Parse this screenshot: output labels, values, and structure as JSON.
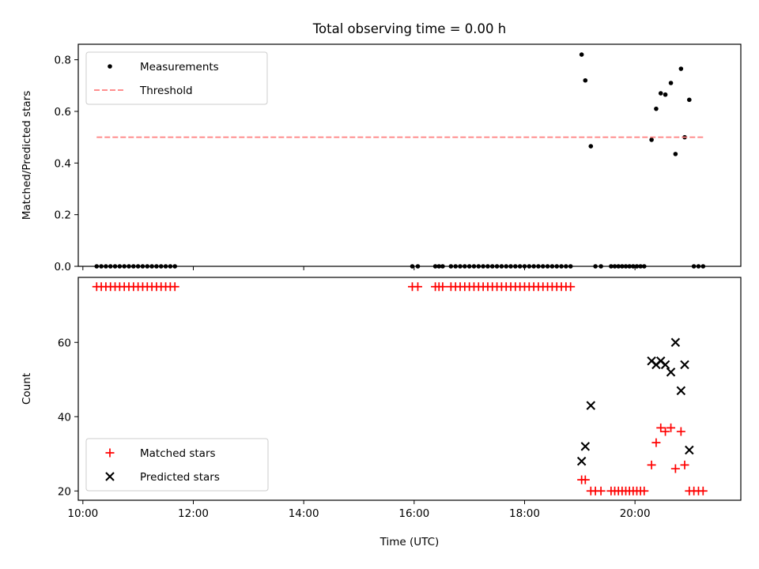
{
  "figure": {
    "title": "Total observing time = 0.00 h"
  },
  "chart_data": [
    {
      "type": "scatter",
      "panel": "top",
      "ylabel": "Matched/Predicted stars",
      "xlabel": "",
      "xlim": [
        "09:55",
        "21:55"
      ],
      "ylim": [
        0,
        0.86
      ],
      "yticks": [
        0.0,
        0.2,
        0.4,
        0.6,
        0.8
      ],
      "ytick_labels": [
        "0.0",
        "0.2",
        "0.4",
        "0.6",
        "0.8"
      ],
      "xticks": [
        "10:00",
        "12:00",
        "14:00",
        "16:00",
        "18:00",
        "20:00"
      ],
      "grid": false,
      "legend": {
        "placement": "top-left",
        "entries": [
          "Measurements",
          "Threshold"
        ]
      },
      "series": [
        {
          "name": "Measurements",
          "style": "dot",
          "color": "#000000",
          "points": [
            [
              "10:15",
              0
            ],
            [
              "10:20",
              0
            ],
            [
              "10:25",
              0
            ],
            [
              "10:30",
              0
            ],
            [
              "10:35",
              0
            ],
            [
              "10:40",
              0
            ],
            [
              "10:45",
              0
            ],
            [
              "10:50",
              0
            ],
            [
              "10:55",
              0
            ],
            [
              "11:00",
              0
            ],
            [
              "11:05",
              0
            ],
            [
              "11:10",
              0
            ],
            [
              "11:15",
              0
            ],
            [
              "11:20",
              0
            ],
            [
              "11:25",
              0
            ],
            [
              "11:30",
              0
            ],
            [
              "11:35",
              0
            ],
            [
              "11:40",
              0
            ],
            [
              "15:58",
              0
            ],
            [
              "16:04",
              0
            ],
            [
              "16:23",
              0
            ],
            [
              "16:27",
              0
            ],
            [
              "16:31",
              0
            ],
            [
              "16:40",
              0
            ],
            [
              "16:45",
              0
            ],
            [
              "16:50",
              0
            ],
            [
              "16:55",
              0
            ],
            [
              "17:00",
              0
            ],
            [
              "17:05",
              0
            ],
            [
              "17:10",
              0
            ],
            [
              "17:15",
              0
            ],
            [
              "17:20",
              0
            ],
            [
              "17:25",
              0
            ],
            [
              "17:30",
              0
            ],
            [
              "17:35",
              0
            ],
            [
              "17:40",
              0
            ],
            [
              "17:45",
              0
            ],
            [
              "17:50",
              0
            ],
            [
              "17:55",
              0
            ],
            [
              "18:00",
              0
            ],
            [
              "18:05",
              0
            ],
            [
              "18:10",
              0
            ],
            [
              "18:15",
              0
            ],
            [
              "18:20",
              0
            ],
            [
              "18:25",
              0
            ],
            [
              "18:30",
              0
            ],
            [
              "18:35",
              0
            ],
            [
              "18:40",
              0
            ],
            [
              "18:45",
              0
            ],
            [
              "18:50",
              0
            ],
            [
              "19:02",
              0.82
            ],
            [
              "19:06",
              0.72
            ],
            [
              "19:12",
              0.465
            ],
            [
              "19:17",
              0
            ],
            [
              "19:23",
              0
            ],
            [
              "19:34",
              0
            ],
            [
              "19:38",
              0
            ],
            [
              "19:42",
              0
            ],
            [
              "19:46",
              0
            ],
            [
              "19:50",
              0
            ],
            [
              "19:54",
              0
            ],
            [
              "19:58",
              0
            ],
            [
              "20:02",
              0
            ],
            [
              "20:06",
              0
            ],
            [
              "20:10",
              0
            ],
            [
              "20:18",
              0.49
            ],
            [
              "20:23",
              0.61
            ],
            [
              "20:28",
              0.67
            ],
            [
              "20:33",
              0.665
            ],
            [
              "20:39",
              0.71
            ],
            [
              "20:44",
              0.435
            ],
            [
              "20:50",
              0.765
            ],
            [
              "20:54",
              0.5
            ],
            [
              "20:59",
              0.645
            ],
            [
              "21:04",
              0
            ],
            [
              "21:09",
              0
            ],
            [
              "21:14",
              0
            ]
          ]
        },
        {
          "name": "Threshold",
          "style": "dashed-line",
          "color": "#ff7f7f",
          "x": [
            "10:15",
            "21:15"
          ],
          "y": [
            0.5,
            0.5
          ]
        }
      ]
    },
    {
      "type": "scatter",
      "panel": "bottom",
      "ylabel": "Count",
      "xlabel": "Time (UTC)",
      "xlim": [
        "09:55",
        "21:55"
      ],
      "ylim": [
        17.5,
        77.5
      ],
      "yticks": [
        20,
        40,
        60
      ],
      "ytick_labels": [
        "20",
        "40",
        "60"
      ],
      "xticks": [
        "10:00",
        "12:00",
        "14:00",
        "16:00",
        "18:00",
        "20:00"
      ],
      "xtick_labels": [
        "10:00",
        "12:00",
        "14:00",
        "16:00",
        "18:00",
        "20:00"
      ],
      "grid": false,
      "legend": {
        "placement": "bottom-left",
        "entries": [
          "Matched stars",
          "Predicted stars"
        ]
      },
      "series": [
        {
          "name": "Matched stars",
          "marker": "plus",
          "color": "#ff0000",
          "points": [
            [
              "10:15",
              75
            ],
            [
              "10:20",
              75
            ],
            [
              "10:25",
              75
            ],
            [
              "10:30",
              75
            ],
            [
              "10:35",
              75
            ],
            [
              "10:40",
              75
            ],
            [
              "10:45",
              75
            ],
            [
              "10:50",
              75
            ],
            [
              "10:55",
              75
            ],
            [
              "11:00",
              75
            ],
            [
              "11:05",
              75
            ],
            [
              "11:10",
              75
            ],
            [
              "11:15",
              75
            ],
            [
              "11:20",
              75
            ],
            [
              "11:25",
              75
            ],
            [
              "11:30",
              75
            ],
            [
              "11:35",
              75
            ],
            [
              "11:40",
              75
            ],
            [
              "15:58",
              75
            ],
            [
              "16:04",
              75
            ],
            [
              "16:23",
              75
            ],
            [
              "16:27",
              75
            ],
            [
              "16:31",
              75
            ],
            [
              "16:40",
              75
            ],
            [
              "16:45",
              75
            ],
            [
              "16:50",
              75
            ],
            [
              "16:55",
              75
            ],
            [
              "17:00",
              75
            ],
            [
              "17:05",
              75
            ],
            [
              "17:10",
              75
            ],
            [
              "17:15",
              75
            ],
            [
              "17:20",
              75
            ],
            [
              "17:25",
              75
            ],
            [
              "17:30",
              75
            ],
            [
              "17:35",
              75
            ],
            [
              "17:40",
              75
            ],
            [
              "17:45",
              75
            ],
            [
              "17:50",
              75
            ],
            [
              "17:55",
              75
            ],
            [
              "18:00",
              75
            ],
            [
              "18:05",
              75
            ],
            [
              "18:10",
              75
            ],
            [
              "18:15",
              75
            ],
            [
              "18:20",
              75
            ],
            [
              "18:25",
              75
            ],
            [
              "18:30",
              75
            ],
            [
              "18:35",
              75
            ],
            [
              "18:40",
              75
            ],
            [
              "18:45",
              75
            ],
            [
              "18:50",
              75
            ],
            [
              "19:02",
              23
            ],
            [
              "19:06",
              23
            ],
            [
              "19:12",
              20
            ],
            [
              "19:17",
              20
            ],
            [
              "19:23",
              20
            ],
            [
              "19:34",
              20
            ],
            [
              "19:38",
              20
            ],
            [
              "19:42",
              20
            ],
            [
              "19:46",
              20
            ],
            [
              "19:50",
              20
            ],
            [
              "19:54",
              20
            ],
            [
              "19:58",
              20
            ],
            [
              "20:02",
              20
            ],
            [
              "20:06",
              20
            ],
            [
              "20:10",
              20
            ],
            [
              "20:18",
              27
            ],
            [
              "20:23",
              33
            ],
            [
              "20:28",
              37
            ],
            [
              "20:33",
              36
            ],
            [
              "20:39",
              37
            ],
            [
              "20:44",
              26
            ],
            [
              "20:50",
              36
            ],
            [
              "20:54",
              27
            ],
            [
              "20:59",
              20
            ],
            [
              "21:04",
              20
            ],
            [
              "21:09",
              20
            ],
            [
              "21:14",
              20
            ]
          ]
        },
        {
          "name": "Predicted stars",
          "marker": "x",
          "color": "#000000",
          "points": [
            [
              "19:02",
              28
            ],
            [
              "19:06",
              32
            ],
            [
              "19:12",
              43
            ],
            [
              "20:18",
              55
            ],
            [
              "20:23",
              54
            ],
            [
              "20:28",
              55
            ],
            [
              "20:33",
              54
            ],
            [
              "20:39",
              52
            ],
            [
              "20:44",
              60
            ],
            [
              "20:50",
              47
            ],
            [
              "20:54",
              54
            ],
            [
              "20:59",
              31
            ]
          ]
        }
      ]
    }
  ]
}
